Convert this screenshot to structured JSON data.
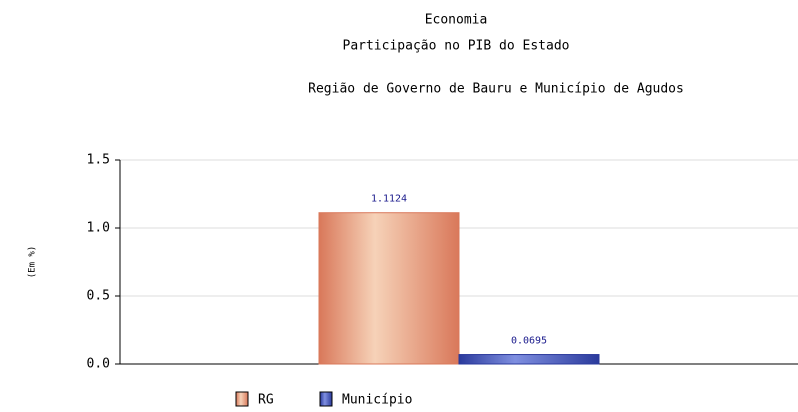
{
  "chart_data": {
    "type": "bar",
    "title": "Economia",
    "subtitle": "Participação no PIB do Estado",
    "subtitle2": "Região de Governo de Bauru e Município de Agudos",
    "ylabel": "(Em %)",
    "categories": [
      null
    ],
    "series": [
      {
        "name": "RG",
        "color": "#d9785a",
        "values": [
          1.1124
        ]
      },
      {
        "name": "Município",
        "color": "#2a3a9c",
        "values": [
          0.0695
        ]
      }
    ],
    "ylim": [
      0,
      1.5
    ],
    "yticks": [
      {
        "value": 0,
        "label": "0.0"
      },
      0.5,
      {
        "value": 1,
        "label": "1.0"
      },
      {
        "value": 1.5,
        "label": "1.5"
      }
    ],
    "grid": true
  }
}
